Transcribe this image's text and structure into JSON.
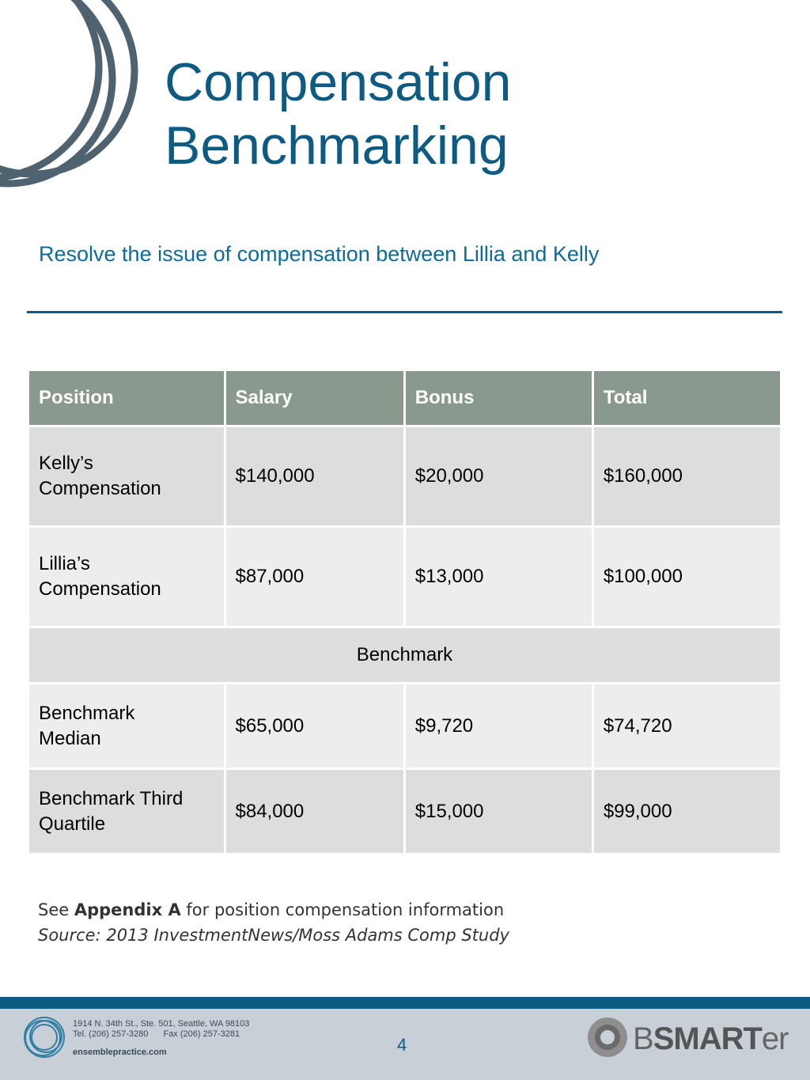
{
  "header": {
    "title_line1": "Compensation",
    "title_line2": "Benchmarking",
    "subtitle": "Resolve the issue of compensation between Lillia and Kelly",
    "accent_color": "#0d5a82"
  },
  "table": {
    "headers": [
      "Position",
      "Salary",
      "Bonus",
      "Total"
    ],
    "header_color": "#8a998d",
    "rows": [
      {
        "position_line1": "Kelly’s",
        "position_line2": "Compensation",
        "salary": "$140,000",
        "bonus": "$20,000",
        "total": "$160,000"
      },
      {
        "position_line1": "Lillia’s",
        "position_line2": "Compensation",
        "salary": "$87,000",
        "bonus": "$13,000",
        "total": "$100,000"
      }
    ],
    "section_label": "Benchmark",
    "benchmark_rows": [
      {
        "position_line1": "Benchmark",
        "position_line2": "Median",
        "salary": "$65,000",
        "bonus": "$9,720",
        "total": "$74,720"
      },
      {
        "position_line1": "Benchmark Third",
        "position_line2": "Quartile",
        "salary": "$84,000",
        "bonus": "$15,000",
        "total": "$99,000"
      }
    ]
  },
  "notes": {
    "see": "See",
    "appendix": "Appendix A",
    "rest": "for position compensation information",
    "source": "Source: 2013 InvestmentNews/Moss Adams Comp Study"
  },
  "footer": {
    "address_line1": "1914 N. 34th St., Ste. 501, Seattle, WA 98103",
    "tel": "Tel. (206) 257-3280",
    "fax": "Fax (206) 257-3281",
    "website": "ensemblepractice.com",
    "page_number": "4",
    "brand_b": "B",
    "brand_smart": "SMART",
    "brand_er": "er"
  }
}
